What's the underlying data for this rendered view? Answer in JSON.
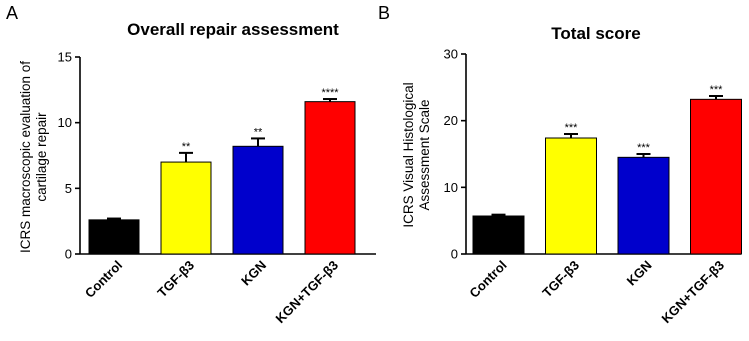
{
  "chart_data": [
    {
      "panel": "A",
      "type": "bar",
      "title": "Overall repair assessment",
      "ylabel": [
        "ICRS macroscopic evaluation of",
        "cartilage repair"
      ],
      "categories": [
        "Control",
        "TGF-β3",
        "KGN",
        "KGN+TGF-β3"
      ],
      "values": [
        2.6,
        7.0,
        8.2,
        11.6
      ],
      "errors": [
        0.1,
        0.7,
        0.6,
        0.2
      ],
      "significance": [
        "",
        "**",
        "**",
        "****"
      ],
      "colors": [
        "#000000",
        "#ffff00",
        "#0000cc",
        "#ff0000"
      ],
      "ylim": [
        0,
        15
      ],
      "yticks": [
        0,
        5,
        10,
        15
      ]
    },
    {
      "panel": "B",
      "type": "bar",
      "title": "Total score",
      "ylabel": [
        "ICRS Visual Histological",
        "Assessment Scale"
      ],
      "categories": [
        "Control",
        "TGF-β3",
        "KGN",
        "KGN+TGF-β3"
      ],
      "values": [
        5.7,
        17.4,
        14.5,
        23.2
      ],
      "errors": [
        0.2,
        0.6,
        0.5,
        0.5
      ],
      "significance": [
        "",
        "***",
        "***",
        "***"
      ],
      "colors": [
        "#000000",
        "#ffff00",
        "#0000cc",
        "#ff0000"
      ],
      "ylim": [
        0,
        30
      ],
      "yticks": [
        0,
        10,
        20,
        30
      ]
    }
  ]
}
